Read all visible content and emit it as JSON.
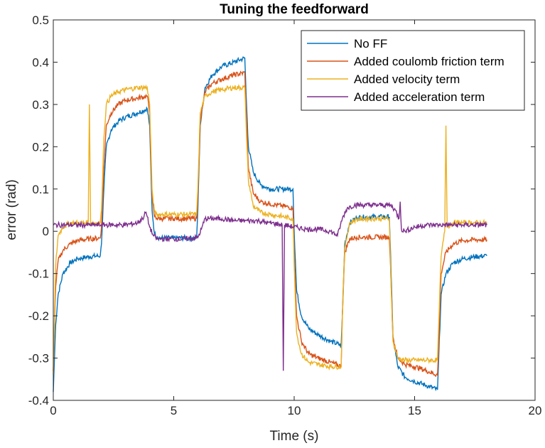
{
  "chart_data": {
    "type": "line",
    "title": "Tuning the feedforward",
    "xlabel": "Time (s)",
    "ylabel": "error (rad)",
    "xlim": [
      0,
      20
    ],
    "ylim": [
      -0.4,
      0.5
    ],
    "xticks": [
      0,
      5,
      10,
      15,
      20
    ],
    "yticks": [
      -0.4,
      -0.3,
      -0.2,
      -0.1,
      0,
      0.1,
      0.2,
      0.3,
      0.4,
      0.5
    ],
    "xtick_labels": [
      "0",
      "5",
      "10",
      "15",
      "20"
    ],
    "ytick_labels": [
      "-0.4",
      "-0.3",
      "-0.2",
      "-0.1",
      "0",
      "0.1",
      "0.2",
      "0.3",
      "0.4",
      "0.5"
    ],
    "grid": false,
    "legend_position": "top-right",
    "series": [
      {
        "name": "No FF",
        "color": "#0072BD",
        "x": [
          0,
          0.05,
          0.1,
          0.2,
          0.4,
          0.7,
          1.0,
          1.5,
          1.95,
          2.0,
          2.1,
          2.2,
          2.4,
          2.7,
          3.0,
          3.5,
          3.9,
          4.0,
          4.1,
          4.2,
          4.3,
          4.5,
          5.0,
          5.5,
          5.95,
          6.0,
          6.1,
          6.3,
          6.6,
          7.0,
          7.5,
          7.95,
          8.0,
          8.1,
          8.3,
          8.6,
          9.0,
          9.5,
          9.95,
          10.0,
          10.1,
          10.3,
          10.6,
          11.0,
          11.5,
          11.95,
          12.0,
          12.1,
          12.3,
          12.6,
          13.0,
          13.5,
          13.95,
          14.0,
          14.1,
          14.3,
          14.6,
          15.0,
          15.5,
          15.95,
          16.0,
          16.1,
          16.3,
          16.6,
          17.0,
          17.5,
          18.0
        ],
        "y": [
          -0.38,
          -0.3,
          -0.22,
          -0.15,
          -0.1,
          -0.075,
          -0.065,
          -0.06,
          -0.058,
          -0.03,
          0.1,
          0.2,
          0.24,
          0.26,
          0.27,
          0.28,
          0.29,
          0.25,
          0.05,
          -0.005,
          -0.014,
          -0.016,
          -0.016,
          -0.016,
          -0.016,
          0.05,
          0.25,
          0.34,
          0.37,
          0.39,
          0.4,
          0.41,
          0.33,
          0.2,
          0.14,
          0.11,
          0.1,
          0.1,
          0.1,
          0.0,
          -0.14,
          -0.2,
          -0.23,
          -0.245,
          -0.26,
          -0.27,
          -0.2,
          -0.03,
          0.02,
          0.032,
          0.034,
          0.034,
          0.034,
          -0.05,
          -0.25,
          -0.32,
          -0.345,
          -0.355,
          -0.365,
          -0.375,
          -0.3,
          -0.15,
          -0.1,
          -0.075,
          -0.065,
          -0.06,
          -0.058
        ]
      },
      {
        "name": "Added coulomb friction term",
        "color": "#D95319",
        "x": [
          0,
          0.05,
          0.1,
          0.2,
          0.4,
          0.7,
          1.0,
          1.5,
          1.95,
          2.0,
          2.1,
          2.2,
          2.4,
          2.7,
          3.0,
          3.5,
          3.9,
          4.0,
          4.1,
          4.2,
          4.3,
          4.5,
          5.0,
          5.5,
          5.95,
          6.0,
          6.1,
          6.3,
          6.6,
          7.0,
          7.5,
          7.95,
          8.0,
          8.1,
          8.3,
          8.6,
          9.0,
          9.5,
          9.95,
          10.0,
          10.1,
          10.3,
          10.6,
          11.0,
          11.5,
          11.95,
          12.0,
          12.1,
          12.3,
          12.6,
          13.0,
          13.5,
          13.95,
          14.0,
          14.1,
          14.3,
          14.6,
          15.0,
          15.5,
          15.95,
          16.0,
          16.1,
          16.3,
          16.6,
          17.0,
          17.5,
          18.0
        ],
        "y": [
          -0.33,
          -0.22,
          -0.13,
          -0.07,
          -0.045,
          -0.03,
          -0.022,
          -0.018,
          -0.016,
          0.01,
          0.15,
          0.25,
          0.28,
          0.3,
          0.31,
          0.315,
          0.32,
          0.28,
          0.08,
          0.035,
          0.031,
          0.03,
          0.03,
          0.03,
          0.03,
          0.08,
          0.26,
          0.33,
          0.35,
          0.36,
          0.37,
          0.375,
          0.3,
          0.15,
          0.09,
          0.07,
          0.065,
          0.06,
          0.055,
          -0.05,
          -0.2,
          -0.26,
          -0.29,
          -0.3,
          -0.31,
          -0.32,
          -0.2,
          -0.05,
          -0.018,
          -0.014,
          -0.014,
          -0.014,
          -0.014,
          -0.08,
          -0.25,
          -0.3,
          -0.315,
          -0.32,
          -0.33,
          -0.34,
          -0.27,
          -0.1,
          -0.05,
          -0.03,
          -0.022,
          -0.02,
          -0.02
        ]
      },
      {
        "name": "Added velocity term",
        "color": "#EDB120",
        "x": [
          0,
          0.05,
          0.1,
          0.2,
          0.4,
          0.7,
          1.0,
          1.45,
          1.5,
          1.55,
          1.95,
          2.0,
          2.1,
          2.2,
          2.4,
          2.7,
          3.0,
          3.5,
          3.9,
          4.0,
          4.1,
          4.2,
          4.3,
          4.5,
          5.0,
          5.5,
          5.95,
          6.0,
          6.1,
          6.3,
          6.6,
          7.0,
          7.5,
          7.95,
          8.0,
          8.1,
          8.3,
          8.6,
          9.0,
          9.5,
          9.95,
          10.0,
          10.1,
          10.3,
          10.6,
          11.0,
          11.5,
          11.95,
          12.0,
          12.1,
          12.3,
          12.6,
          13.0,
          13.5,
          13.95,
          14.0,
          14.1,
          14.3,
          14.6,
          15.0,
          15.5,
          15.95,
          16.0,
          16.1,
          16.25,
          16.3,
          16.35,
          16.6,
          17.0,
          17.5,
          18.0
        ],
        "y": [
          -0.34,
          -0.2,
          -0.08,
          -0.01,
          0.01,
          0.02,
          0.02,
          0.02,
          0.3,
          0.02,
          0.02,
          0.05,
          0.22,
          0.3,
          0.32,
          0.33,
          0.335,
          0.34,
          0.34,
          0.3,
          0.1,
          0.045,
          0.04,
          0.04,
          0.04,
          0.04,
          0.04,
          0.1,
          0.28,
          0.32,
          0.33,
          0.335,
          0.34,
          0.34,
          0.26,
          0.12,
          0.06,
          0.045,
          0.04,
          0.035,
          0.03,
          -0.08,
          -0.24,
          -0.29,
          -0.31,
          -0.315,
          -0.32,
          -0.32,
          -0.2,
          -0.04,
          0.02,
          0.028,
          0.03,
          0.03,
          0.03,
          -0.08,
          -0.26,
          -0.3,
          -0.305,
          -0.305,
          -0.305,
          -0.305,
          -0.22,
          -0.06,
          0.0,
          0.25,
          0.01,
          0.02,
          0.02,
          0.02,
          0.02
        ]
      },
      {
        "name": "Added acceleration term",
        "color": "#7E2F8E",
        "x": [
          0,
          0.5,
          1.0,
          1.5,
          2.0,
          2.5,
          3.0,
          3.5,
          3.7,
          3.85,
          4.0,
          4.15,
          4.3,
          4.5,
          5.0,
          5.5,
          6.0,
          6.15,
          6.3,
          6.6,
          7.0,
          7.5,
          8.0,
          8.5,
          8.9,
          9.0,
          9.5,
          9.55,
          9.6,
          10.0,
          10.5,
          11.0,
          11.5,
          11.8,
          12.0,
          12.2,
          12.5,
          13.0,
          13.5,
          14.0,
          14.2,
          14.35,
          14.4,
          14.45,
          14.6,
          15.0,
          15.5,
          16.0,
          16.5,
          17.0,
          17.5,
          18.0
        ],
        "y": [
          0.015,
          0.015,
          0.015,
          0.015,
          0.015,
          0.015,
          0.015,
          0.02,
          0.03,
          0.045,
          0.01,
          -0.01,
          -0.018,
          -0.018,
          -0.018,
          -0.018,
          -0.015,
          0.005,
          0.03,
          0.03,
          0.03,
          0.025,
          0.025,
          0.025,
          0.02,
          0.02,
          0.015,
          -0.33,
          0.015,
          0.01,
          0.005,
          0.005,
          0.0,
          -0.01,
          0.03,
          0.055,
          0.062,
          0.062,
          0.062,
          0.062,
          0.05,
          0.03,
          0.07,
          0.005,
          0.0,
          0.01,
          0.015,
          0.015,
          0.015,
          0.015,
          0.015,
          0.015
        ]
      }
    ]
  }
}
